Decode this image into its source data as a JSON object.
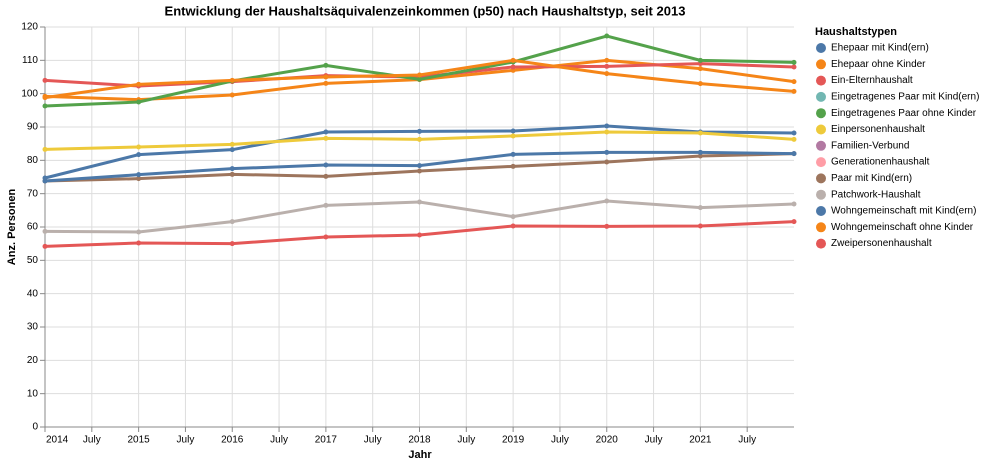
{
  "chart_data": {
    "type": "line",
    "title": "Entwicklung der Haushaltsäquivalenzeinkommen (p50) nach Haushaltstyp, seit 2013",
    "x_label": "Jahr",
    "y_label": "Anz. Personen",
    "legend_title": "Haushaltstypen",
    "x": [
      2014,
      2015,
      2016,
      2017,
      2018,
      2019,
      2020,
      2021,
      2022
    ],
    "xlim": [
      2014,
      2022
    ],
    "xticks": [
      2014,
      {
        "value": 2014.5,
        "label": "July"
      },
      2015,
      {
        "value": 2015.5,
        "label": "July"
      },
      2016,
      {
        "value": 2016.5,
        "label": "July"
      },
      2017,
      {
        "value": 2017.5,
        "label": "July"
      },
      2018,
      {
        "value": 2018.5,
        "label": "July"
      },
      2019,
      {
        "value": 2019.5,
        "label": "July"
      },
      2020,
      {
        "value": 2020.5,
        "label": "July"
      },
      2021,
      {
        "value": 2021.5,
        "label": "July"
      }
    ],
    "ylim": [
      0,
      120
    ],
    "yticks": [
      0,
      10,
      20,
      30,
      40,
      50,
      60,
      70,
      80,
      90,
      100,
      110,
      120
    ],
    "grid": true,
    "legend": "right",
    "series": [
      {
        "name": "Ehepaar mit Kind(ern)",
        "color": "#4c78a8",
        "values": [
          74.7,
          81.7,
          83.2,
          88.5,
          88.7,
          88.8,
          90.3,
          88.5,
          88.2
        ]
      },
      {
        "name": "Ehepaar ohne Kinder",
        "color": "#f58518",
        "values": [
          99.2,
          98.2,
          99.6,
          103.1,
          104.2,
          107.0,
          110.0,
          107.5,
          103.6
        ]
      },
      {
        "name": "Ein-Elternhaushalt",
        "color": "#e45756",
        "values": [
          104.0,
          102.3,
          103.6,
          105.4,
          105.0,
          108.0,
          108.2,
          109.0,
          108.0
        ]
      },
      {
        "name": "Eingetragenes Paar mit Kind(ern)",
        "color": "#72b7b2",
        "values": [
          null,
          null,
          null,
          null,
          null,
          null,
          null,
          null,
          null
        ]
      },
      {
        "name": "Eingetragenes Paar ohne Kinder",
        "color": "#54a24b",
        "values": [
          96.3,
          97.5,
          103.8,
          108.5,
          104.3,
          109.5,
          117.3,
          110.0,
          109.4
        ]
      },
      {
        "name": "Einpersonenhaushalt",
        "color": "#eeca3b",
        "values": [
          83.3,
          84.0,
          84.8,
          86.6,
          86.3,
          87.3,
          88.5,
          88.2,
          86.3
        ]
      },
      {
        "name": "Familien-Verbund",
        "color": "#b279a2",
        "values": [
          null,
          null,
          null,
          null,
          null,
          null,
          null,
          null,
          null
        ]
      },
      {
        "name": "Generationenhaushalt",
        "color": "#ff9da6",
        "values": [
          null,
          null,
          null,
          null,
          null,
          null,
          null,
          null,
          null
        ]
      },
      {
        "name": "Paar mit Kind(ern)",
        "color": "#9d755d",
        "values": [
          73.8,
          74.5,
          75.8,
          75.2,
          76.8,
          78.2,
          79.5,
          81.3,
          82.0
        ]
      },
      {
        "name": "Patchwork-Haushalt",
        "color": "#bab0ac",
        "values": [
          58.7,
          58.5,
          61.6,
          66.5,
          67.5,
          63.1,
          67.8,
          65.8,
          66.9
        ]
      },
      {
        "name": "Wohngemeinschaft mit Kind(ern)",
        "color": "#4c78a8",
        "values": [
          73.8,
          75.7,
          77.5,
          78.6,
          78.4,
          81.8,
          82.4,
          82.4,
          82.0
        ]
      },
      {
        "name": "Wohngemeinschaft ohne Kinder",
        "color": "#f58518",
        "values": [
          98.8,
          102.8,
          104.0,
          105.0,
          105.6,
          110.0,
          106.0,
          103.0,
          100.7
        ]
      },
      {
        "name": "Zweipersonenhaushalt",
        "color": "#e45756",
        "values": [
          54.2,
          55.2,
          55.0,
          57.0,
          57.6,
          60.3,
          60.2,
          60.3,
          61.6
        ]
      }
    ]
  }
}
